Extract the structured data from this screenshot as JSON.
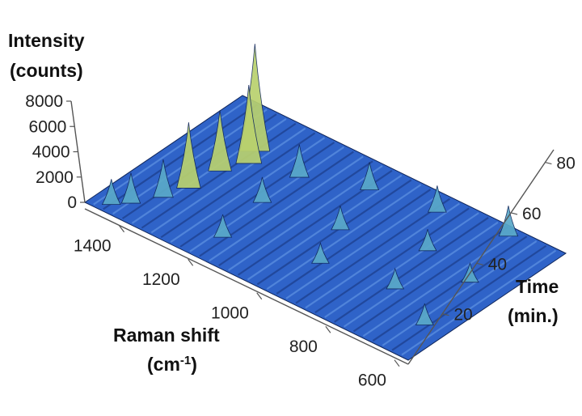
{
  "chart_data": {
    "type": "surface-3d",
    "z_axis": {
      "title_line1": "Intensity",
      "title_line2": "(counts)",
      "ticks": [
        0,
        2000,
        4000,
        6000,
        8000
      ],
      "range": [
        0,
        8000
      ]
    },
    "x_axis": {
      "title_line1": "Raman shift",
      "title_line2_base": "(cm",
      "title_line2_sup": "-1",
      "title_line2_end": ")",
      "ticks": [
        1400,
        1200,
        1000,
        800,
        600
      ],
      "range": [
        1500,
        560
      ]
    },
    "y_axis": {
      "title_line1": "Time",
      "title_line2": "(min.)",
      "ticks": [
        20,
        40,
        60,
        80
      ],
      "range": [
        0,
        85
      ]
    },
    "peaks": [
      {
        "shift": 1340,
        "time": 62,
        "intensity": 8500
      },
      {
        "shift": 1320,
        "time": 55,
        "intensity": 6200
      },
      {
        "shift": 1350,
        "time": 45,
        "intensity": 4800
      },
      {
        "shift": 1360,
        "time": 30,
        "intensity": 5200
      },
      {
        "shift": 1380,
        "time": 20,
        "intensity": 3000
      },
      {
        "shift": 1420,
        "time": 10,
        "intensity": 2400
      },
      {
        "shift": 1450,
        "time": 5,
        "intensity": 2000
      },
      {
        "shift": 1200,
        "time": 60,
        "intensity": 2600
      },
      {
        "shift": 1200,
        "time": 40,
        "intensity": 2000
      },
      {
        "shift": 1180,
        "time": 15,
        "intensity": 1800
      },
      {
        "shift": 1050,
        "time": 70,
        "intensity": 2200
      },
      {
        "shift": 1000,
        "time": 45,
        "intensity": 1900
      },
      {
        "shift": 950,
        "time": 25,
        "intensity": 1600
      },
      {
        "shift": 880,
        "time": 75,
        "intensity": 2100
      },
      {
        "shift": 800,
        "time": 55,
        "intensity": 1700
      },
      {
        "shift": 760,
        "time": 30,
        "intensity": 1600
      },
      {
        "shift": 700,
        "time": 80,
        "intensity": 2400
      },
      {
        "shift": 650,
        "time": 50,
        "intensity": 1500
      },
      {
        "shift": 620,
        "time": 20,
        "intensity": 1700
      }
    ],
    "colors": {
      "base": "#2f63c8",
      "mid": "#5aa9c8",
      "high": "#b9d16e",
      "shadow": "#10265a"
    },
    "grid": false
  }
}
